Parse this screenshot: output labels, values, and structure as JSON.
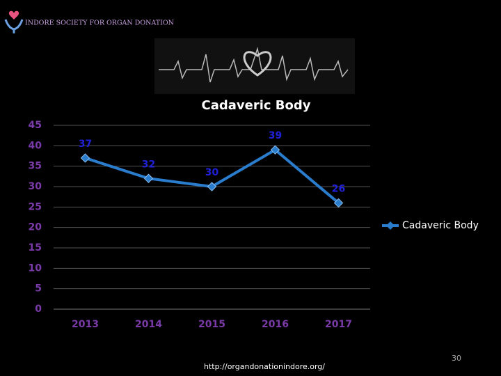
{
  "header": {
    "org_name": "INDORE SOCIETY FOR ORGAN DONATION"
  },
  "chart_data": {
    "type": "line",
    "title": "Cadaveric Body",
    "categories": [
      "2013",
      "2014",
      "2015",
      "2016",
      "2017"
    ],
    "series": [
      {
        "name": "Cadaveric Body",
        "color": "#2a7ccc",
        "values": [
          37,
          32,
          30,
          39,
          26
        ]
      }
    ],
    "ylim": [
      0,
      45
    ],
    "yticks": [
      0,
      5,
      10,
      15,
      20,
      25,
      30,
      35,
      40,
      45
    ],
    "grid": true,
    "legend": "right",
    "data_labels": true,
    "label_color": "#2020d8",
    "tick_color": "#7a3aa8"
  },
  "footer": {
    "url": "http://organdonationindore.org/",
    "page_number": "30"
  }
}
